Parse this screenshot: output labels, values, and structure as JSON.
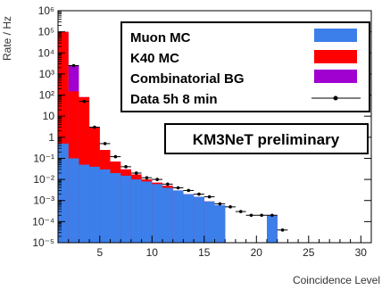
{
  "chart_data": {
    "type": "bar",
    "xlabel": "Coincidence Level",
    "ylabel": "Rate / Hz",
    "xlim": [
      1,
      31
    ],
    "ylim": [
      1e-05,
      1000000
    ],
    "y_scale": "log",
    "stacked": true,
    "x_ticks": [
      5,
      10,
      15,
      20,
      25,
      30
    ],
    "y_ticks": [
      {
        "value": 1e-05,
        "label": "10⁻⁵"
      },
      {
        "value": 0.0001,
        "label": "10⁻⁴"
      },
      {
        "value": 0.001,
        "label": "10⁻³"
      },
      {
        "value": 0.01,
        "label": "10⁻²"
      },
      {
        "value": 0.1,
        "label": "10⁻¹"
      },
      {
        "value": 1,
        "label": "1"
      },
      {
        "value": 10,
        "label": "10"
      },
      {
        "value": 100,
        "label": "10²"
      },
      {
        "value": 1000,
        "label": "10³"
      },
      {
        "value": 10000,
        "label": "10⁴"
      },
      {
        "value": 100000,
        "label": "10⁵"
      },
      {
        "value": 1000000,
        "label": "10⁶"
      }
    ],
    "bin_edges": [
      1,
      2,
      3,
      4,
      5,
      6,
      7,
      8,
      9,
      10,
      11,
      12,
      13,
      14,
      15,
      16,
      17,
      18,
      19,
      20,
      21,
      22
    ],
    "series": [
      {
        "name": "Muon MC",
        "color": "#3c7fea",
        "values": [
          0.5,
          0.1,
          0.05,
          0.04,
          0.03,
          0.02,
          0.015,
          0.01,
          0.008,
          0.006,
          0.004,
          0.003,
          0.002,
          0.0015,
          0.0009,
          0.0006,
          1e-05,
          1e-05,
          1e-05,
          1e-05,
          0.0002
        ]
      },
      {
        "name": "K40 MC",
        "color": "#ff0000",
        "values": [
          100000,
          150,
          80,
          3,
          0.25,
          0.07,
          0.03,
          0.017,
          0.01,
          0.007,
          0.005,
          0.003,
          0.002,
          0.0015,
          0.0009,
          0.0006,
          1e-05,
          1e-05,
          1e-05,
          1e-05,
          0.0002
        ]
      },
      {
        "name": "Combinatorial BG",
        "color": "#a000d0",
        "values": [
          100000,
          2500,
          80,
          3,
          0.25,
          0.07,
          0.03,
          0.017,
          0.01,
          0.007,
          0.005,
          0.003,
          0.002,
          0.0015,
          0.0009,
          0.0006,
          1e-05,
          1e-05,
          1e-05,
          1e-05,
          0.0002
        ]
      }
    ],
    "data_series": {
      "name": "Data 5h 8 min",
      "color": "#000000",
      "x": [
        2.5,
        3.5,
        4.5,
        5.5,
        6.5,
        7.5,
        8.5,
        9.5,
        10.5,
        11.5,
        12.5,
        13.5,
        14.5,
        15.5,
        16.5,
        17.5,
        18.5,
        19.5,
        20.5,
        21.5,
        22.5
      ],
      "y": [
        2500,
        50,
        3,
        0.5,
        0.12,
        0.04,
        0.02,
        0.012,
        0.01,
        0.006,
        0.004,
        0.003,
        0.002,
        0.0015,
        0.0007,
        0.0005,
        0.0003,
        0.0002,
        0.0002,
        0.0002,
        4e-05
      ]
    },
    "legend_placement": "top-right",
    "annotation": "KM3NeT preliminary"
  }
}
